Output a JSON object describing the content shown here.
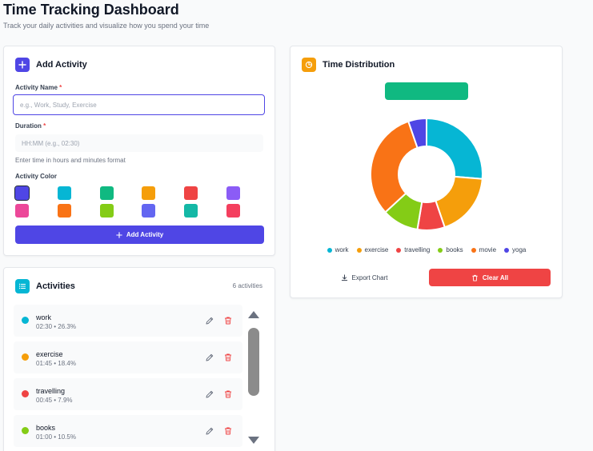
{
  "header": {
    "title": "Time Tracking Dashboard",
    "subtitle": "Track your daily activities and visualize how you spend your time"
  },
  "add_activity": {
    "title": "Add Activity",
    "icon": "plus-icon",
    "name_label": "Activity Name",
    "name_required": "*",
    "name_placeholder": "e.g., Work, Study, Exercise",
    "name_value": "",
    "duration_label": "Duration",
    "duration_required": "*",
    "duration_placeholder": "HH:MM (e.g., 02:30)",
    "duration_value": "",
    "duration_hint": "Enter time in hours and minutes format",
    "color_label": "Activity Color",
    "colors": [
      "#4f46e5",
      "#06b6d4",
      "#10b981",
      "#f59e0b",
      "#ef4444",
      "#8b5cf6",
      "#ec4899",
      "#f97316",
      "#84cc16",
      "#6366f1",
      "#14b8a6",
      "#f43f5e"
    ],
    "selected_color_index": 0,
    "submit_label": "Add Activity",
    "accent": "#4f46e5"
  },
  "activities": {
    "title": "Activities",
    "icon": "list-icon",
    "count_label": "6 activities",
    "items": [
      {
        "name": "work",
        "duration": "02:30",
        "percent": "26.3%",
        "color": "#06b6d4"
      },
      {
        "name": "exercise",
        "duration": "01:45",
        "percent": "18.4%",
        "color": "#f59e0b"
      },
      {
        "name": "travelling",
        "duration": "00:45",
        "percent": "7.9%",
        "color": "#ef4444"
      },
      {
        "name": "books",
        "duration": "01:00",
        "percent": "10.5%",
        "color": "#84cc16"
      }
    ],
    "separator": "•"
  },
  "distribution": {
    "title": "Time Distribution",
    "icon": "pie-chart-icon",
    "export_label": "Export Chart",
    "clear_label": "Clear All",
    "title_bar_color": "#10b981"
  },
  "chart_data": {
    "type": "pie",
    "categories": [
      "work",
      "exercise",
      "travelling",
      "books",
      "movie",
      "yoga"
    ],
    "values": [
      2.5,
      1.75,
      0.75,
      1.0,
      3.0,
      0.5
    ],
    "colors": [
      "#06b6d4",
      "#f59e0b",
      "#ef4444",
      "#84cc16",
      "#f97316",
      "#4f46e5"
    ],
    "legend_position": "bottom"
  }
}
